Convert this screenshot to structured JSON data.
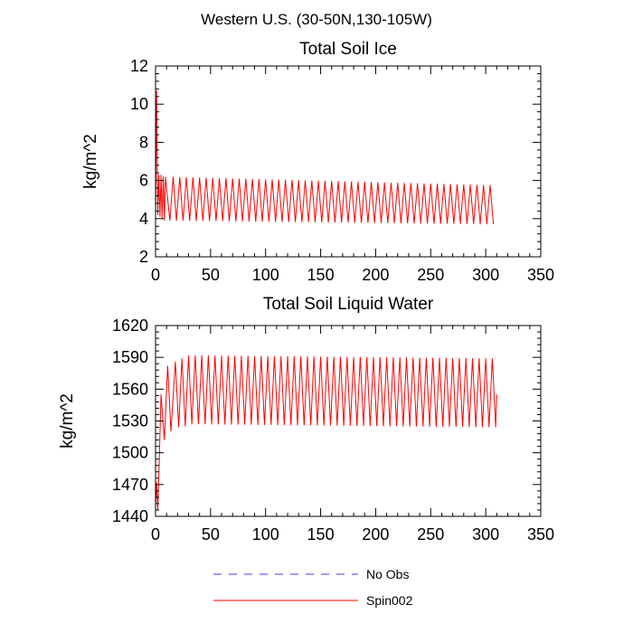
{
  "figure_title": "Western U.S. (30-50N,130-105W)",
  "chart_data": [
    {
      "type": "line",
      "title": "Total Soil Ice",
      "xlabel": "",
      "ylabel": "kg/m^2",
      "xlim": [
        0,
        350
      ],
      "ylim": [
        2,
        12
      ],
      "x_ticks": [
        0,
        50,
        100,
        150,
        200,
        250,
        300,
        350
      ],
      "y_ticks": [
        2,
        4,
        6,
        8,
        10,
        12
      ],
      "grid": false,
      "series": [
        {
          "name": "Spin002",
          "color": "#ff0000",
          "style": "solid",
          "points": [
            [
              0,
              4.4
            ],
            [
              1,
              10.7
            ],
            [
              2,
              4.2
            ],
            [
              3,
              6.3
            ],
            [
              4,
              4.1
            ],
            [
              5,
              6.3
            ],
            [
              6,
              4.0
            ],
            [
              7,
              6.2
            ],
            [
              8,
              3.9
            ],
            [
              9,
              6.2
            ]
          ],
          "periodic": {
            "period": 6,
            "x_start": 10,
            "x_end": 309,
            "peak_start": 6.2,
            "peak_end": 5.75,
            "trough_start": 3.9,
            "trough_end": 3.7
          }
        }
      ]
    },
    {
      "type": "line",
      "title": "Total Soil Liquid Water",
      "xlabel": "",
      "ylabel": "kg/m^2",
      "xlim": [
        0,
        350
      ],
      "ylim": [
        1440,
        1620
      ],
      "x_ticks": [
        0,
        50,
        100,
        150,
        200,
        250,
        300,
        350
      ],
      "y_ticks": [
        1440,
        1470,
        1500,
        1530,
        1560,
        1590,
        1620
      ],
      "grid": false,
      "series": [
        {
          "name": "Spin002",
          "color": "#ff0000",
          "style": "solid",
          "points": [
            [
              0,
              1450
            ],
            [
              1,
              1472
            ],
            [
              2,
              1446
            ],
            [
              3,
              1478
            ],
            [
              5,
              1555
            ],
            [
              8,
              1512
            ],
            [
              11,
              1582
            ],
            [
              14,
              1520
            ],
            [
              18,
              1586
            ],
            [
              21,
              1524
            ],
            [
              24,
              1589
            ],
            [
              27,
              1525
            ]
          ],
          "periodic": {
            "period": 6,
            "x_start": 27,
            "x_end": 309,
            "peak_start": 1592,
            "peak_end": 1589,
            "trough_start": 1527,
            "trough_end": 1524,
            "final_value": 1555
          }
        }
      ]
    }
  ],
  "legend": {
    "placement": "bottom-center",
    "entries": [
      {
        "name": "No Obs",
        "color": "#3a3aff",
        "style": "dashed"
      },
      {
        "name": "Spin002",
        "color": "#ff0000",
        "style": "solid"
      }
    ]
  }
}
